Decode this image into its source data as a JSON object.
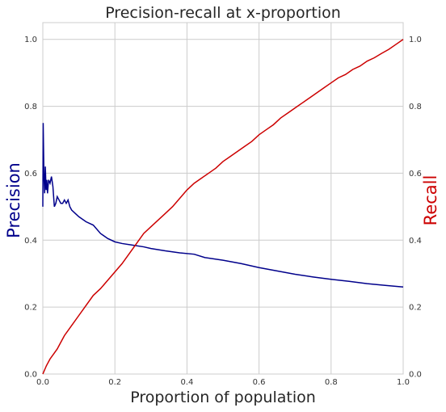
{
  "chart_data": {
    "type": "line",
    "title": "Precision-recall at x-proportion",
    "xlabel": "Proportion of population",
    "ylabel_left": "Precision",
    "ylabel_right": "Recall",
    "xlim": [
      0,
      1
    ],
    "ylim_left": [
      0,
      1.05
    ],
    "ylim_right": [
      0,
      1.05
    ],
    "x_ticks": [
      "0.0",
      "0.2",
      "0.4",
      "0.6",
      "0.8",
      "1.0"
    ],
    "y_ticks_left": [
      "0.0",
      "0.2",
      "0.4",
      "0.6",
      "0.8",
      "1.0"
    ],
    "y_ticks_right": [
      "0.0",
      "0.2",
      "0.4",
      "0.6",
      "0.8",
      "1.0"
    ],
    "grid": true,
    "series": [
      {
        "name": "Precision",
        "axis": "left",
        "color": "#00008b",
        "points": [
          [
            0.0,
            0.5
          ],
          [
            0.001,
            0.75
          ],
          [
            0.003,
            0.6
          ],
          [
            0.005,
            0.54
          ],
          [
            0.007,
            0.62
          ],
          [
            0.009,
            0.55
          ],
          [
            0.011,
            0.58
          ],
          [
            0.013,
            0.54
          ],
          [
            0.016,
            0.58
          ],
          [
            0.02,
            0.57
          ],
          [
            0.024,
            0.59
          ],
          [
            0.028,
            0.56
          ],
          [
            0.032,
            0.5
          ],
          [
            0.036,
            0.51
          ],
          [
            0.04,
            0.53
          ],
          [
            0.045,
            0.52
          ],
          [
            0.05,
            0.51
          ],
          [
            0.055,
            0.51
          ],
          [
            0.06,
            0.52
          ],
          [
            0.065,
            0.51
          ],
          [
            0.07,
            0.52
          ],
          [
            0.075,
            0.5
          ],
          [
            0.08,
            0.49
          ],
          [
            0.09,
            0.48
          ],
          [
            0.1,
            0.47
          ],
          [
            0.12,
            0.455
          ],
          [
            0.14,
            0.445
          ],
          [
            0.16,
            0.42
          ],
          [
            0.18,
            0.405
          ],
          [
            0.2,
            0.395
          ],
          [
            0.22,
            0.39
          ],
          [
            0.25,
            0.385
          ],
          [
            0.28,
            0.38
          ],
          [
            0.3,
            0.375
          ],
          [
            0.34,
            0.368
          ],
          [
            0.38,
            0.362
          ],
          [
            0.42,
            0.358
          ],
          [
            0.45,
            0.348
          ],
          [
            0.5,
            0.34
          ],
          [
            0.55,
            0.33
          ],
          [
            0.6,
            0.318
          ],
          [
            0.65,
            0.308
          ],
          [
            0.7,
            0.298
          ],
          [
            0.75,
            0.29
          ],
          [
            0.8,
            0.283
          ],
          [
            0.85,
            0.277
          ],
          [
            0.9,
            0.27
          ],
          [
            0.95,
            0.265
          ],
          [
            1.0,
            0.26
          ]
        ]
      },
      {
        "name": "Recall",
        "axis": "right",
        "color": "#cc0000",
        "points": [
          [
            0.0,
            0.0
          ],
          [
            0.01,
            0.025
          ],
          [
            0.02,
            0.045
          ],
          [
            0.03,
            0.06
          ],
          [
            0.04,
            0.075
          ],
          [
            0.05,
            0.095
          ],
          [
            0.06,
            0.115
          ],
          [
            0.08,
            0.145
          ],
          [
            0.1,
            0.175
          ],
          [
            0.12,
            0.205
          ],
          [
            0.14,
            0.235
          ],
          [
            0.16,
            0.255
          ],
          [
            0.18,
            0.28
          ],
          [
            0.2,
            0.305
          ],
          [
            0.22,
            0.33
          ],
          [
            0.25,
            0.375
          ],
          [
            0.28,
            0.42
          ],
          [
            0.3,
            0.44
          ],
          [
            0.32,
            0.46
          ],
          [
            0.34,
            0.48
          ],
          [
            0.36,
            0.5
          ],
          [
            0.38,
            0.525
          ],
          [
            0.4,
            0.55
          ],
          [
            0.42,
            0.57
          ],
          [
            0.44,
            0.585
          ],
          [
            0.46,
            0.6
          ],
          [
            0.48,
            0.615
          ],
          [
            0.5,
            0.635
          ],
          [
            0.52,
            0.65
          ],
          [
            0.54,
            0.665
          ],
          [
            0.56,
            0.68
          ],
          [
            0.58,
            0.695
          ],
          [
            0.6,
            0.715
          ],
          [
            0.62,
            0.73
          ],
          [
            0.64,
            0.745
          ],
          [
            0.66,
            0.765
          ],
          [
            0.68,
            0.78
          ],
          [
            0.7,
            0.795
          ],
          [
            0.72,
            0.81
          ],
          [
            0.74,
            0.825
          ],
          [
            0.76,
            0.84
          ],
          [
            0.78,
            0.855
          ],
          [
            0.8,
            0.87
          ],
          [
            0.82,
            0.885
          ],
          [
            0.84,
            0.895
          ],
          [
            0.86,
            0.91
          ],
          [
            0.88,
            0.92
          ],
          [
            0.9,
            0.935
          ],
          [
            0.92,
            0.945
          ],
          [
            0.94,
            0.958
          ],
          [
            0.96,
            0.97
          ],
          [
            0.98,
            0.985
          ],
          [
            1.0,
            1.0
          ]
        ]
      }
    ]
  }
}
